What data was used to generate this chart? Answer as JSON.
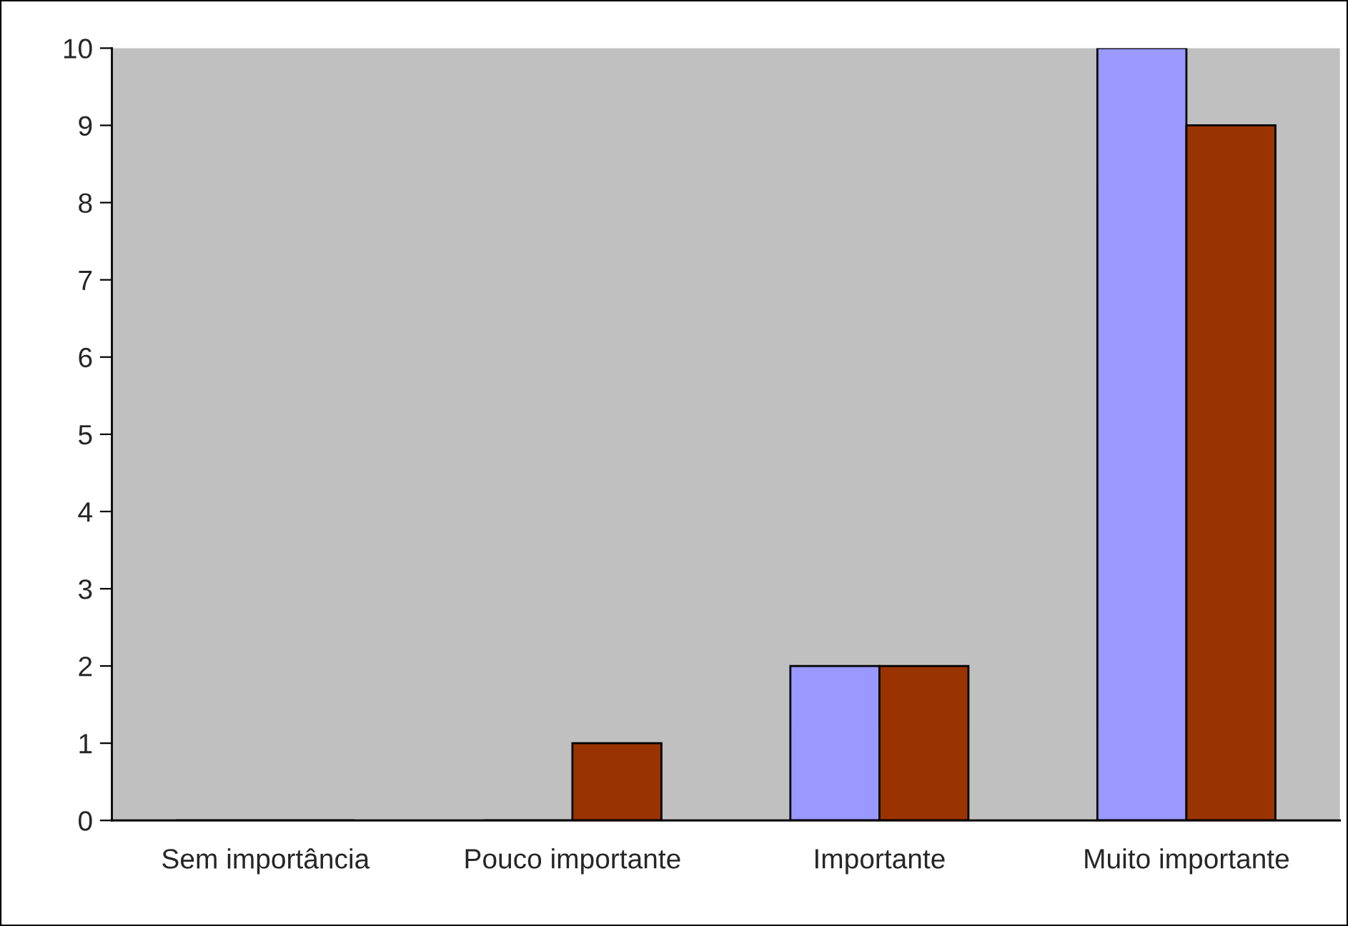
{
  "chart_data": {
    "type": "bar",
    "categories": [
      "Sem importância",
      "Pouco importante",
      "Importante",
      "Muito importante"
    ],
    "series": [
      {
        "color": "#9999ff",
        "values": [
          0,
          0,
          2,
          10
        ]
      },
      {
        "color": "#993300",
        "values": [
          0,
          1,
          2,
          9
        ]
      }
    ],
    "ylim": [
      0,
      10
    ],
    "yticks": [
      0,
      1,
      2,
      3,
      4,
      5,
      6,
      7,
      8,
      9,
      10
    ],
    "grid": false,
    "legend": false
  }
}
